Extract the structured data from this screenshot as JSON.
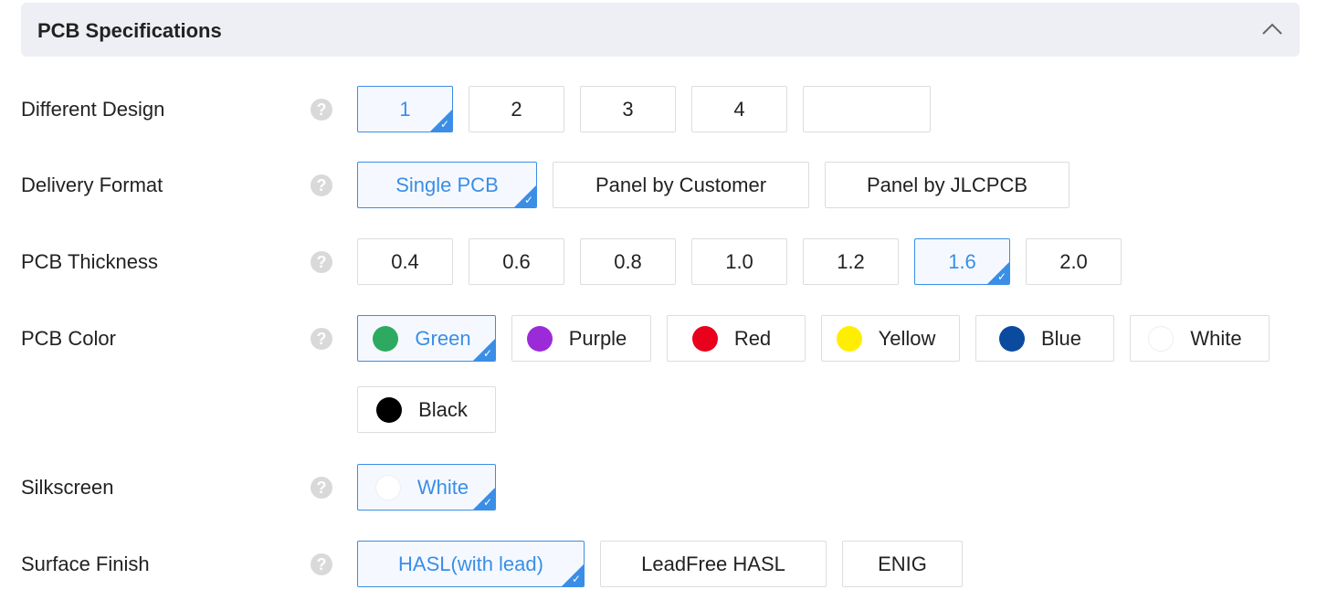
{
  "header": {
    "title": "PCB Specifications",
    "collapse_icon": "chevron-up-icon"
  },
  "accent": "#3a8ee6",
  "rows": [
    {
      "label": "Different Design",
      "options": [
        {
          "label": "1",
          "selected": true
        },
        {
          "label": "2"
        },
        {
          "label": "3"
        },
        {
          "label": "4"
        }
      ],
      "custom_input": ""
    },
    {
      "label": "Delivery Format",
      "options": [
        {
          "label": "Single PCB",
          "selected": true
        },
        {
          "label": "Panel by Customer"
        },
        {
          "label": "Panel by JLCPCB"
        }
      ]
    },
    {
      "label": "PCB Thickness",
      "options": [
        {
          "label": "0.4"
        },
        {
          "label": "0.6"
        },
        {
          "label": "0.8"
        },
        {
          "label": "1.0"
        },
        {
          "label": "1.2"
        },
        {
          "label": "1.6",
          "selected": true
        },
        {
          "label": "2.0"
        }
      ]
    },
    {
      "label": "PCB Color",
      "options": [
        {
          "label": "Green",
          "color": "#2daa5f",
          "selected": true
        },
        {
          "label": "Purple",
          "color": "#9b2bd9"
        },
        {
          "label": "Red",
          "color": "#e8001c"
        },
        {
          "label": "Yellow",
          "color": "#ffee00"
        },
        {
          "label": "Blue",
          "color": "#0a4ba0"
        },
        {
          "label": "White",
          "color": "#ffffff"
        },
        {
          "label": "Black",
          "color": "#000000"
        }
      ]
    },
    {
      "label": "Silkscreen",
      "options": [
        {
          "label": "White",
          "color": "#ffffff",
          "selected": true
        }
      ]
    },
    {
      "label": "Surface Finish",
      "options": [
        {
          "label": "HASL(with lead)",
          "selected": true
        },
        {
          "label": "LeadFree HASL"
        },
        {
          "label": "ENIG"
        }
      ]
    }
  ]
}
